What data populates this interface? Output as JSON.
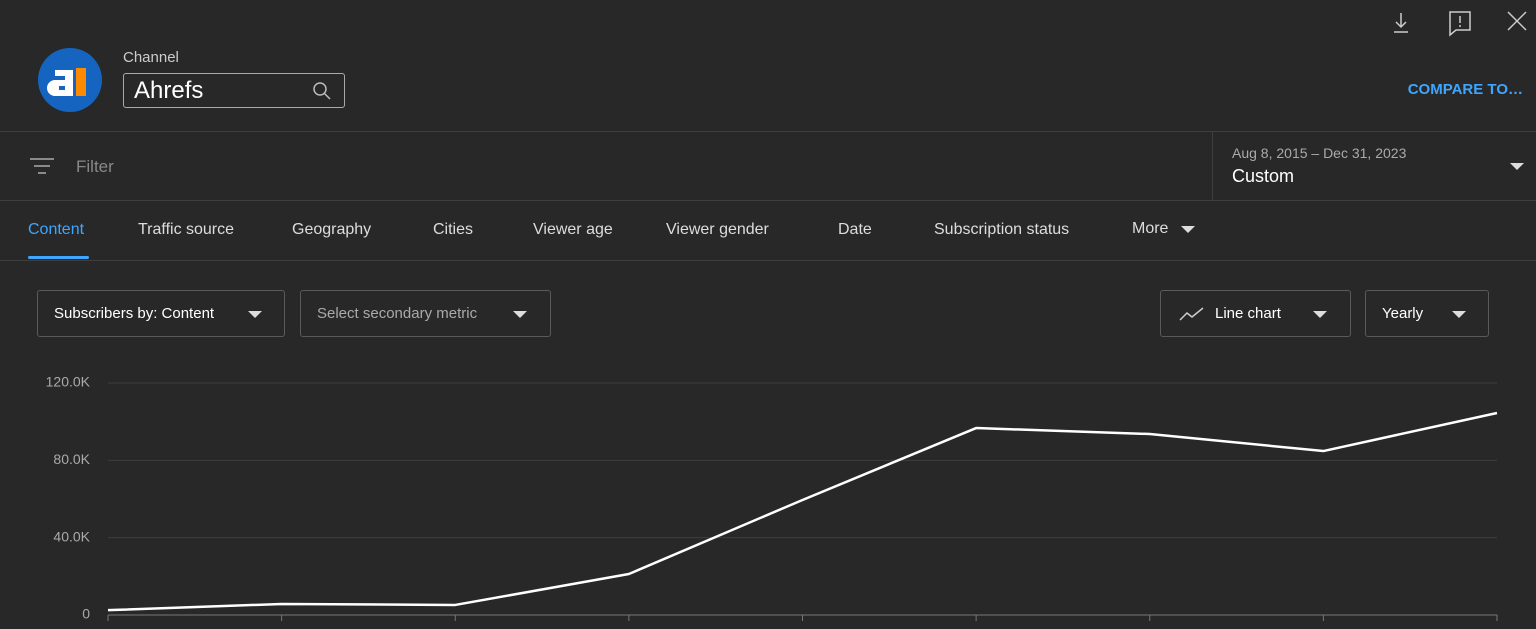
{
  "header": {
    "channel_label": "Channel",
    "channel_name": "Ahrefs",
    "compare": "COMPARE TO…"
  },
  "filter": {
    "placeholder": "Filter"
  },
  "date_range": {
    "range": "Aug 8, 2015 – Dec 31, 2023",
    "preset": "Custom"
  },
  "tabs": [
    "Content",
    "Traffic source",
    "Geography",
    "Cities",
    "Viewer age",
    "Viewer gender",
    "Date",
    "Subscription status"
  ],
  "more": "More",
  "controls": {
    "metric": "Subscribers by: Content",
    "secondary": "Select secondary metric",
    "chart_type": "Line chart",
    "period": "Yearly"
  },
  "chart_data": {
    "type": "line",
    "categories": [
      null,
      null,
      null,
      null,
      null,
      null,
      null,
      null,
      null
    ],
    "values": [
      2500,
      5700,
      5200,
      21200,
      59500,
      96700,
      93600,
      84800,
      104500
    ],
    "color": "#ffffff",
    "ylim": [
      0,
      120000
    ],
    "yticks": [
      0,
      {
        "value": 40000,
        "label": "40.0K"
      },
      {
        "value": 80000,
        "label": "80.0K"
      },
      {
        "value": 120000,
        "label": "120.0K"
      }
    ],
    "grid": true
  }
}
